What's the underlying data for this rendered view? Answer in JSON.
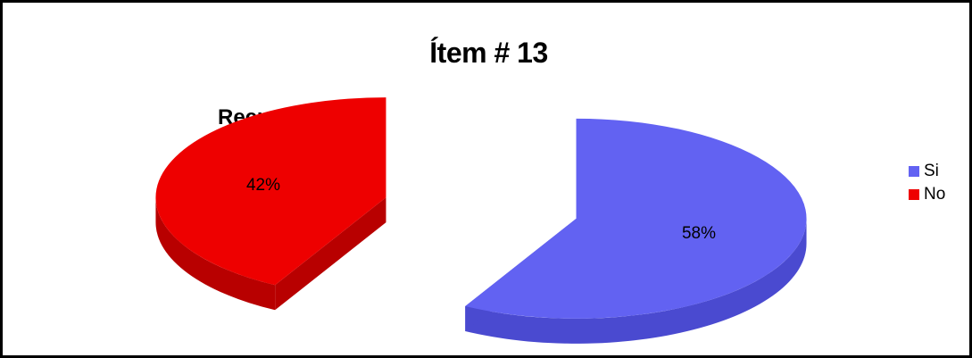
{
  "chart_data": {
    "type": "pie",
    "title": "Ítem # 13",
    "subtitle": "Recursos",
    "slices": [
      {
        "name": "Si",
        "value": 58,
        "label": "58%",
        "color": "#6262f2",
        "side_color": "#4a4ad0"
      },
      {
        "name": "No",
        "value": 42,
        "label": "42%",
        "color": "#ee0000",
        "side_color": "#b80000"
      }
    ],
    "legend_position": "right",
    "exploded": true,
    "three_d": true
  }
}
